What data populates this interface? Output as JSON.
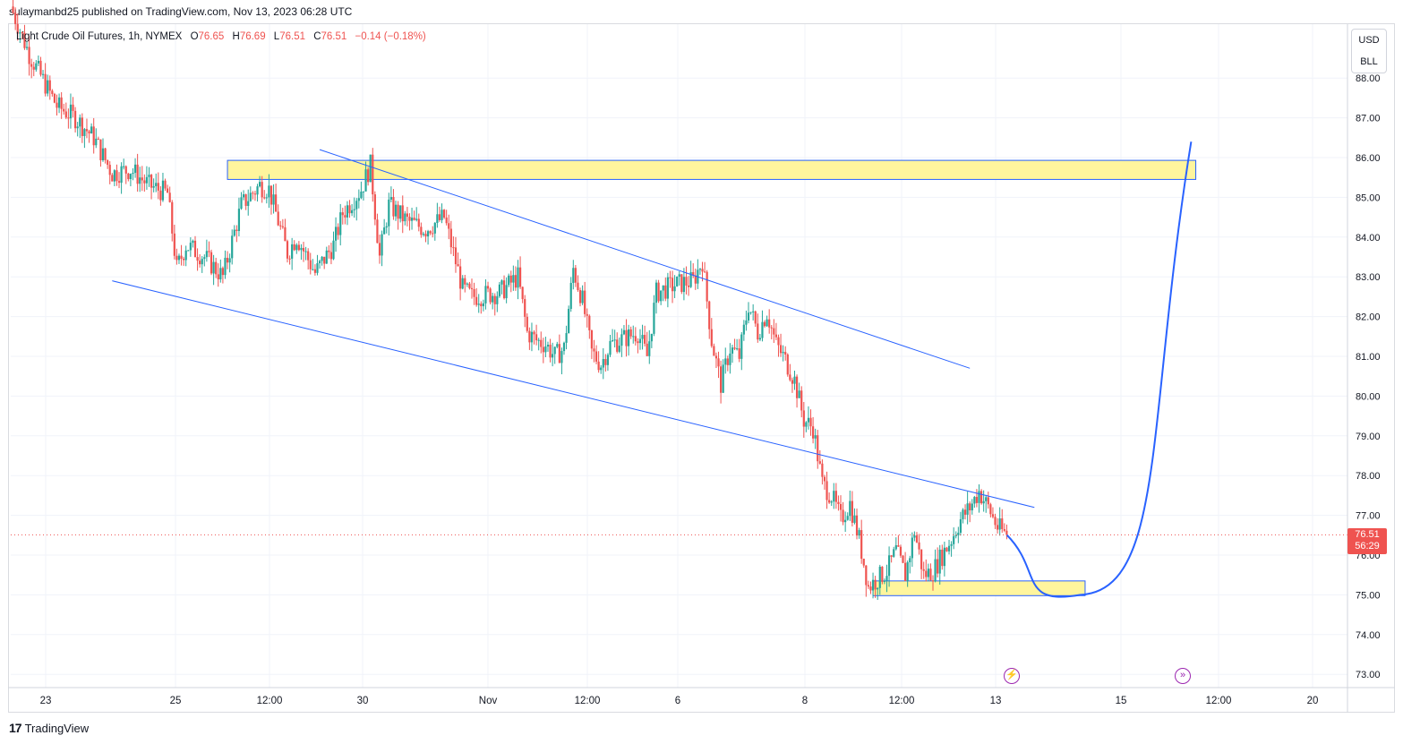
{
  "header": {
    "publish_line": "sulaymanbd25 published on TradingView.com, Nov 13, 2023 06:28 UTC"
  },
  "legend": {
    "symbol": "Light Crude Oil Futures, 1h, NYMEX",
    "open_label": "O",
    "open": "76.65",
    "high_label": "H",
    "high": "76.69",
    "low_label": "L",
    "low": "76.51",
    "close_label": "C",
    "close": "76.51",
    "change": "−0.14 (−0.18%)"
  },
  "unit_buttons": {
    "currency": "USD",
    "unit": "BLL"
  },
  "price_tag": {
    "price": "76.51",
    "countdown": "56:29"
  },
  "footer": {
    "brand": "TradingView",
    "logo_glyph": "17"
  },
  "colors": {
    "up": "#26a69a",
    "down": "#ef5350",
    "trendline": "#2962ff",
    "zone_fill": "#fff59d",
    "zone_border": "#2962ff",
    "event_icon": "#9c27b0"
  },
  "icons": [
    "lightning-icon",
    "fast-forward-icon"
  ],
  "chart_data": {
    "type": "candlestick",
    "y_axis": {
      "ticks": [
        88.0,
        87.0,
        86.0,
        85.0,
        84.0,
        83.0,
        82.0,
        81.0,
        80.0,
        79.0,
        78.0,
        77.0,
        76.0,
        75.0,
        74.0,
        73.0
      ],
      "range": [
        72.7,
        89.5
      ]
    },
    "x_axis": {
      "ticks": [
        "23",
        "25",
        "12:00",
        "30",
        "Nov",
        "12:00",
        "6",
        "8",
        "12:00",
        "13",
        "15",
        "12:00",
        "20"
      ]
    },
    "price_path": [
      [
        0,
        89.8
      ],
      [
        2,
        88.6
      ],
      [
        5,
        87.3
      ],
      [
        7,
        87.0
      ],
      [
        9,
        86.5
      ],
      [
        11,
        85.6
      ],
      [
        13,
        85.7
      ],
      [
        15,
        85.3
      ],
      [
        17,
        85.1
      ],
      [
        18,
        83.2
      ],
      [
        19,
        83.8
      ],
      [
        21,
        83.5
      ],
      [
        23,
        83.0
      ],
      [
        25,
        84.8
      ],
      [
        27,
        85.3
      ],
      [
        28,
        85.2
      ],
      [
        30,
        83.6
      ],
      [
        31,
        84.0
      ],
      [
        33,
        83.1
      ],
      [
        35,
        83.8
      ],
      [
        36,
        84.6
      ],
      [
        38,
        85.2
      ],
      [
        39,
        85.8
      ],
      [
        40,
        83.5
      ],
      [
        41,
        84.8
      ],
      [
        43,
        84.4
      ],
      [
        45,
        84.2
      ],
      [
        47,
        84.5
      ],
      [
        49,
        82.7
      ],
      [
        50,
        82.5
      ],
      [
        53,
        82.6
      ],
      [
        55,
        83.0
      ],
      [
        56,
        81.6
      ],
      [
        57,
        81.4
      ],
      [
        58,
        81.3
      ],
      [
        59,
        81.0
      ],
      [
        60,
        81.2
      ],
      [
        61,
        83.2
      ],
      [
        62,
        82.4
      ],
      [
        63,
        81.1
      ],
      [
        64,
        80.8
      ],
      [
        65,
        81.3
      ],
      [
        66,
        81.4
      ],
      [
        67,
        81.5
      ],
      [
        68,
        81.6
      ],
      [
        69,
        81.0
      ],
      [
        70,
        82.6
      ],
      [
        72,
        82.8
      ],
      [
        74,
        82.9
      ],
      [
        75,
        83.4
      ],
      [
        76,
        81.4
      ],
      [
        77,
        80.3
      ],
      [
        78,
        81.2
      ],
      [
        79,
        81.0
      ],
      [
        80,
        82.3
      ],
      [
        81,
        81.6
      ],
      [
        82,
        82.1
      ],
      [
        83,
        81.3
      ],
      [
        84,
        80.9
      ],
      [
        85,
        80.4
      ],
      [
        86,
        79.4
      ],
      [
        87,
        79.2
      ],
      [
        88,
        77.8
      ],
      [
        89,
        77.5
      ],
      [
        90,
        76.9
      ],
      [
        91,
        77.3
      ],
      [
        92,
        76.4
      ],
      [
        93,
        75.2
      ],
      [
        94,
        75.4
      ],
      [
        95,
        75.6
      ],
      [
        96,
        76.1
      ],
      [
        97,
        75.5
      ],
      [
        98,
        76.6
      ],
      [
        99,
        75.5
      ],
      [
        100,
        75.6
      ],
      [
        101,
        76.0
      ],
      [
        102,
        76.4
      ],
      [
        103,
        76.9
      ],
      [
        104,
        77.2
      ],
      [
        105,
        77.6
      ],
      [
        106,
        77.2
      ],
      [
        107,
        76.7
      ],
      [
        108,
        76.51
      ]
    ],
    "projection": [
      [
        108,
        76.51
      ],
      [
        116,
        75.0
      ],
      [
        128,
        86.4
      ]
    ],
    "zones": [
      {
        "x_start": 23.5,
        "x_end": 128.5,
        "y_low": 85.45,
        "y_high": 85.93
      },
      {
        "x_start": 93.5,
        "x_end": 116.5,
        "y_low": 74.98,
        "y_high": 75.35
      }
    ],
    "trendlines": [
      {
        "from": [
          11,
          82.9
        ],
        "to": [
          111,
          77.2
        ]
      },
      {
        "from": [
          33.5,
          86.2
        ],
        "to": [
          104,
          80.7
        ]
      }
    ],
    "last_price": 76.51,
    "grid": true
  }
}
